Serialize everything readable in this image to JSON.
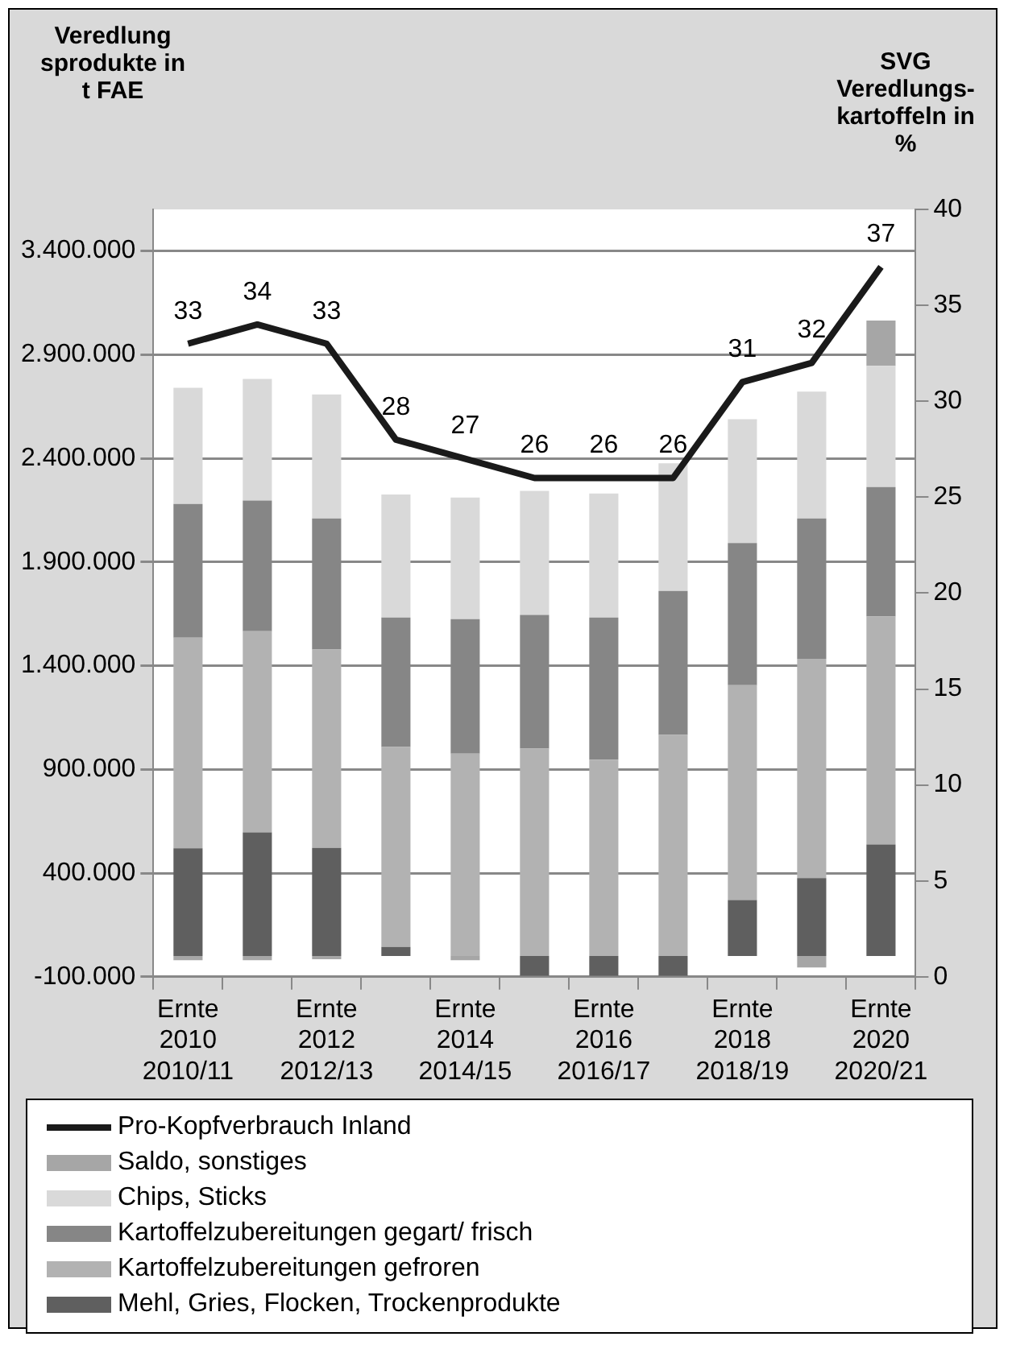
{
  "chart_data": {
    "type": "bar",
    "stacked": true,
    "ylabel": "Veredlung sprodukte in t FAE",
    "y2label": "SVG Veredlungs-kartoffeln in %",
    "categories": [
      "Ernte 2010 2010/11",
      null,
      "Ernte 2012 2012/13",
      null,
      "Ernte 2014 2014/15",
      null,
      "Ernte 2016 2016/17",
      null,
      "Ernte 2018 2018/19",
      null,
      "Ernte 2020 2020/21"
    ],
    "series": [
      {
        "name": "Mehl, Gries, Flocken, Trockenprodukte",
        "color": "#5f5f5f",
        "values": [
          520000,
          596000,
          522000,
          44000,
          null,
          -95000,
          -95000,
          -95000,
          270000,
          376000,
          538000
        ]
      },
      {
        "name": "Kartoffelzubereitungen gefroren",
        "color": "#b2b2b2",
        "values": [
          1015000,
          970000,
          956000,
          964000,
          976000,
          1000000,
          947000,
          1066000,
          1036000,
          1057000,
          1099000
        ]
      },
      {
        "name": "Kartoffelzubereitungen gegart/ frisch",
        "color": "#868686",
        "values": [
          645000,
          630000,
          632000,
          624000,
          648000,
          645000,
          685000,
          694000,
          685000,
          677000,
          624000
        ]
      },
      {
        "name": "Chips, Sticks",
        "color": "#d9d9d9",
        "values": [
          560000,
          587000,
          598000,
          593000,
          587000,
          598000,
          598000,
          616000,
          597000,
          611000,
          585000
        ]
      },
      {
        "name": "Saldo, sonstiges",
        "color": "#a6a6a6",
        "values": [
          -20000,
          -20000,
          -15000,
          null,
          -20000,
          null,
          null,
          null,
          null,
          -55000,
          218000
        ]
      },
      {
        "name": "Pro-Kopfverbrauch Inland",
        "type": "line",
        "axis": "y2",
        "color": "#1a1a1a",
        "values": [
          33,
          34,
          33,
          28,
          27,
          26,
          26,
          26,
          31,
          32,
          37
        ],
        "value_labels": [
          "33",
          "34",
          "33",
          "28",
          "27",
          "26",
          "26",
          "26",
          "31",
          "32",
          "37"
        ]
      }
    ],
    "ylim": [
      -100000,
      3600000
    ],
    "yticks": [
      {
        "value": -100000,
        "label": "-100.000"
      },
      {
        "value": 400000,
        "label": "400.000"
      },
      {
        "value": 900000,
        "label": "900.000"
      },
      {
        "value": 1400000,
        "label": "1.400.000"
      },
      {
        "value": 1900000,
        "label": "1.900.000"
      },
      {
        "value": 2400000,
        "label": "2.400.000"
      },
      {
        "value": 2900000,
        "label": "2.900.000"
      },
      {
        "value": 3400000,
        "label": "3.400.000"
      }
    ],
    "y2lim": [
      0,
      40
    ],
    "y2ticks": [
      0,
      5,
      10,
      15,
      20,
      25,
      30,
      35,
      40
    ],
    "grid": "y",
    "legend": "bottom",
    "marker": "none",
    "line_style": "solid"
  }
}
